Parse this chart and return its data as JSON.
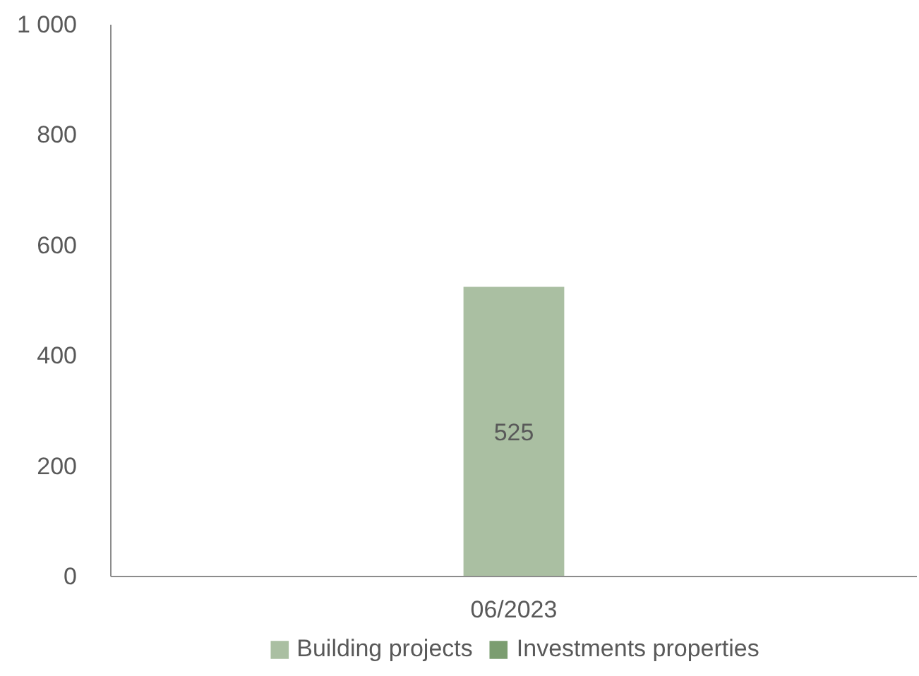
{
  "chart_data": {
    "type": "bar",
    "stacked": true,
    "categories": [
      "06/2023"
    ],
    "series": [
      {
        "name": "Building projects",
        "color": "#aabfa2",
        "values": [
          525
        ]
      },
      {
        "name": "Investments properties",
        "color": "#7b9d70",
        "values": [
          null
        ]
      }
    ],
    "ylim": [
      0,
      1000
    ],
    "yticks": [
      0,
      200,
      400,
      600,
      {
        "value": 800,
        "label": "800"
      },
      {
        "value": 1000,
        "label": "1 000"
      }
    ],
    "data_labels": true,
    "grid": false,
    "legend": "bottom"
  }
}
